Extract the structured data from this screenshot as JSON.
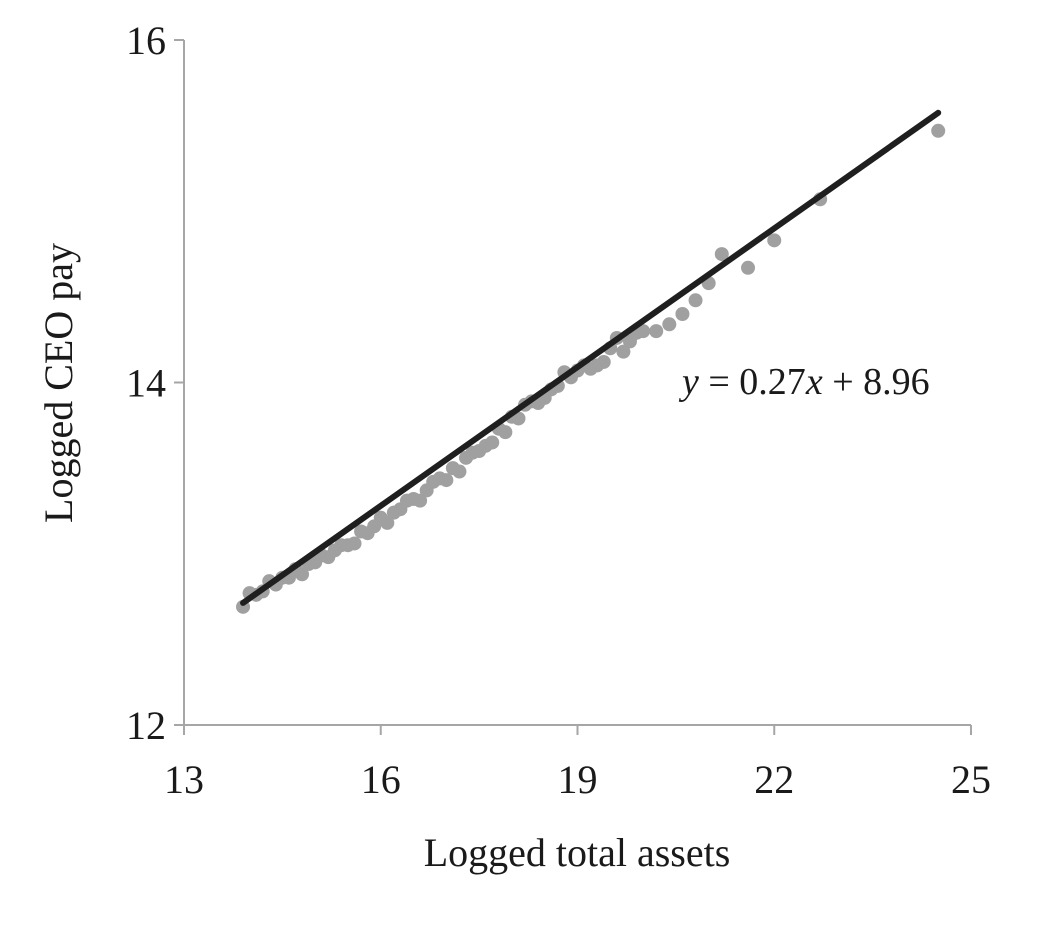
{
  "chart_data": {
    "type": "scatter",
    "xlabel": "Logged total assets",
    "ylabel": "Logged CEO pay",
    "xlim": [
      13,
      25
    ],
    "ylim": [
      12,
      16
    ],
    "xticks": [
      "13",
      "16",
      "19",
      "22",
      "25"
    ],
    "yticks": [
      "12",
      "14",
      "16"
    ],
    "grid": false,
    "colors": {
      "points": "#a0a0a0",
      "fit_line": "#1f1f1f",
      "axis": "#a6a6a6"
    },
    "annotation": {
      "y_var": "y",
      "mid": " = 0.27",
      "x_var": "x",
      "tail": " + 8.96"
    },
    "fit": {
      "slope": 0.27,
      "intercept": 8.96,
      "x_range": [
        13.9,
        24.5
      ]
    },
    "series": [
      {
        "points": [
          [
            13.9,
            12.69
          ],
          [
            14.0,
            12.77
          ],
          [
            14.1,
            12.76
          ],
          [
            14.2,
            12.78
          ],
          [
            14.3,
            12.84
          ],
          [
            14.4,
            12.82
          ],
          [
            14.5,
            12.86
          ],
          [
            14.6,
            12.86
          ],
          [
            14.7,
            12.91
          ],
          [
            14.8,
            12.88
          ],
          [
            14.9,
            12.94
          ],
          [
            15.0,
            12.95
          ],
          [
            15.1,
            12.99
          ],
          [
            15.2,
            12.98
          ],
          [
            15.3,
            13.02
          ],
          [
            15.4,
            13.05
          ],
          [
            15.5,
            13.05
          ],
          [
            15.6,
            13.06
          ],
          [
            15.7,
            13.13
          ],
          [
            15.8,
            13.12
          ],
          [
            15.9,
            13.16
          ],
          [
            16.0,
            13.21
          ],
          [
            16.1,
            13.18
          ],
          [
            16.2,
            13.24
          ],
          [
            16.3,
            13.26
          ],
          [
            16.4,
            13.31
          ],
          [
            16.5,
            13.32
          ],
          [
            16.6,
            13.31
          ],
          [
            16.7,
            13.37
          ],
          [
            16.8,
            13.42
          ],
          [
            16.9,
            13.44
          ],
          [
            17.0,
            13.43
          ],
          [
            17.1,
            13.5
          ],
          [
            17.2,
            13.48
          ],
          [
            17.3,
            13.56
          ],
          [
            17.4,
            13.59
          ],
          [
            17.5,
            13.6
          ],
          [
            17.6,
            13.63
          ],
          [
            17.7,
            13.65
          ],
          [
            17.8,
            13.73
          ],
          [
            17.9,
            13.71
          ],
          [
            18.0,
            13.8
          ],
          [
            18.1,
            13.79
          ],
          [
            18.2,
            13.87
          ],
          [
            18.3,
            13.89
          ],
          [
            18.4,
            13.88
          ],
          [
            18.5,
            13.91
          ],
          [
            18.6,
            13.96
          ],
          [
            18.7,
            13.98
          ],
          [
            18.8,
            14.06
          ],
          [
            18.9,
            14.03
          ],
          [
            19.0,
            14.07
          ],
          [
            19.1,
            14.1
          ],
          [
            19.2,
            14.08
          ],
          [
            19.3,
            14.1
          ],
          [
            19.4,
            14.12
          ],
          [
            19.5,
            14.2
          ],
          [
            19.6,
            14.26
          ],
          [
            19.7,
            14.18
          ],
          [
            19.8,
            14.24
          ],
          [
            19.9,
            14.29
          ],
          [
            20.0,
            14.3
          ],
          [
            20.2,
            14.3
          ],
          [
            20.4,
            14.34
          ],
          [
            20.6,
            14.4
          ],
          [
            20.8,
            14.48
          ],
          [
            21.0,
            14.58
          ],
          [
            21.2,
            14.75
          ],
          [
            21.6,
            14.67
          ],
          [
            22.0,
            14.83
          ],
          [
            22.7,
            15.07
          ],
          [
            24.5,
            15.47
          ]
        ]
      }
    ]
  }
}
